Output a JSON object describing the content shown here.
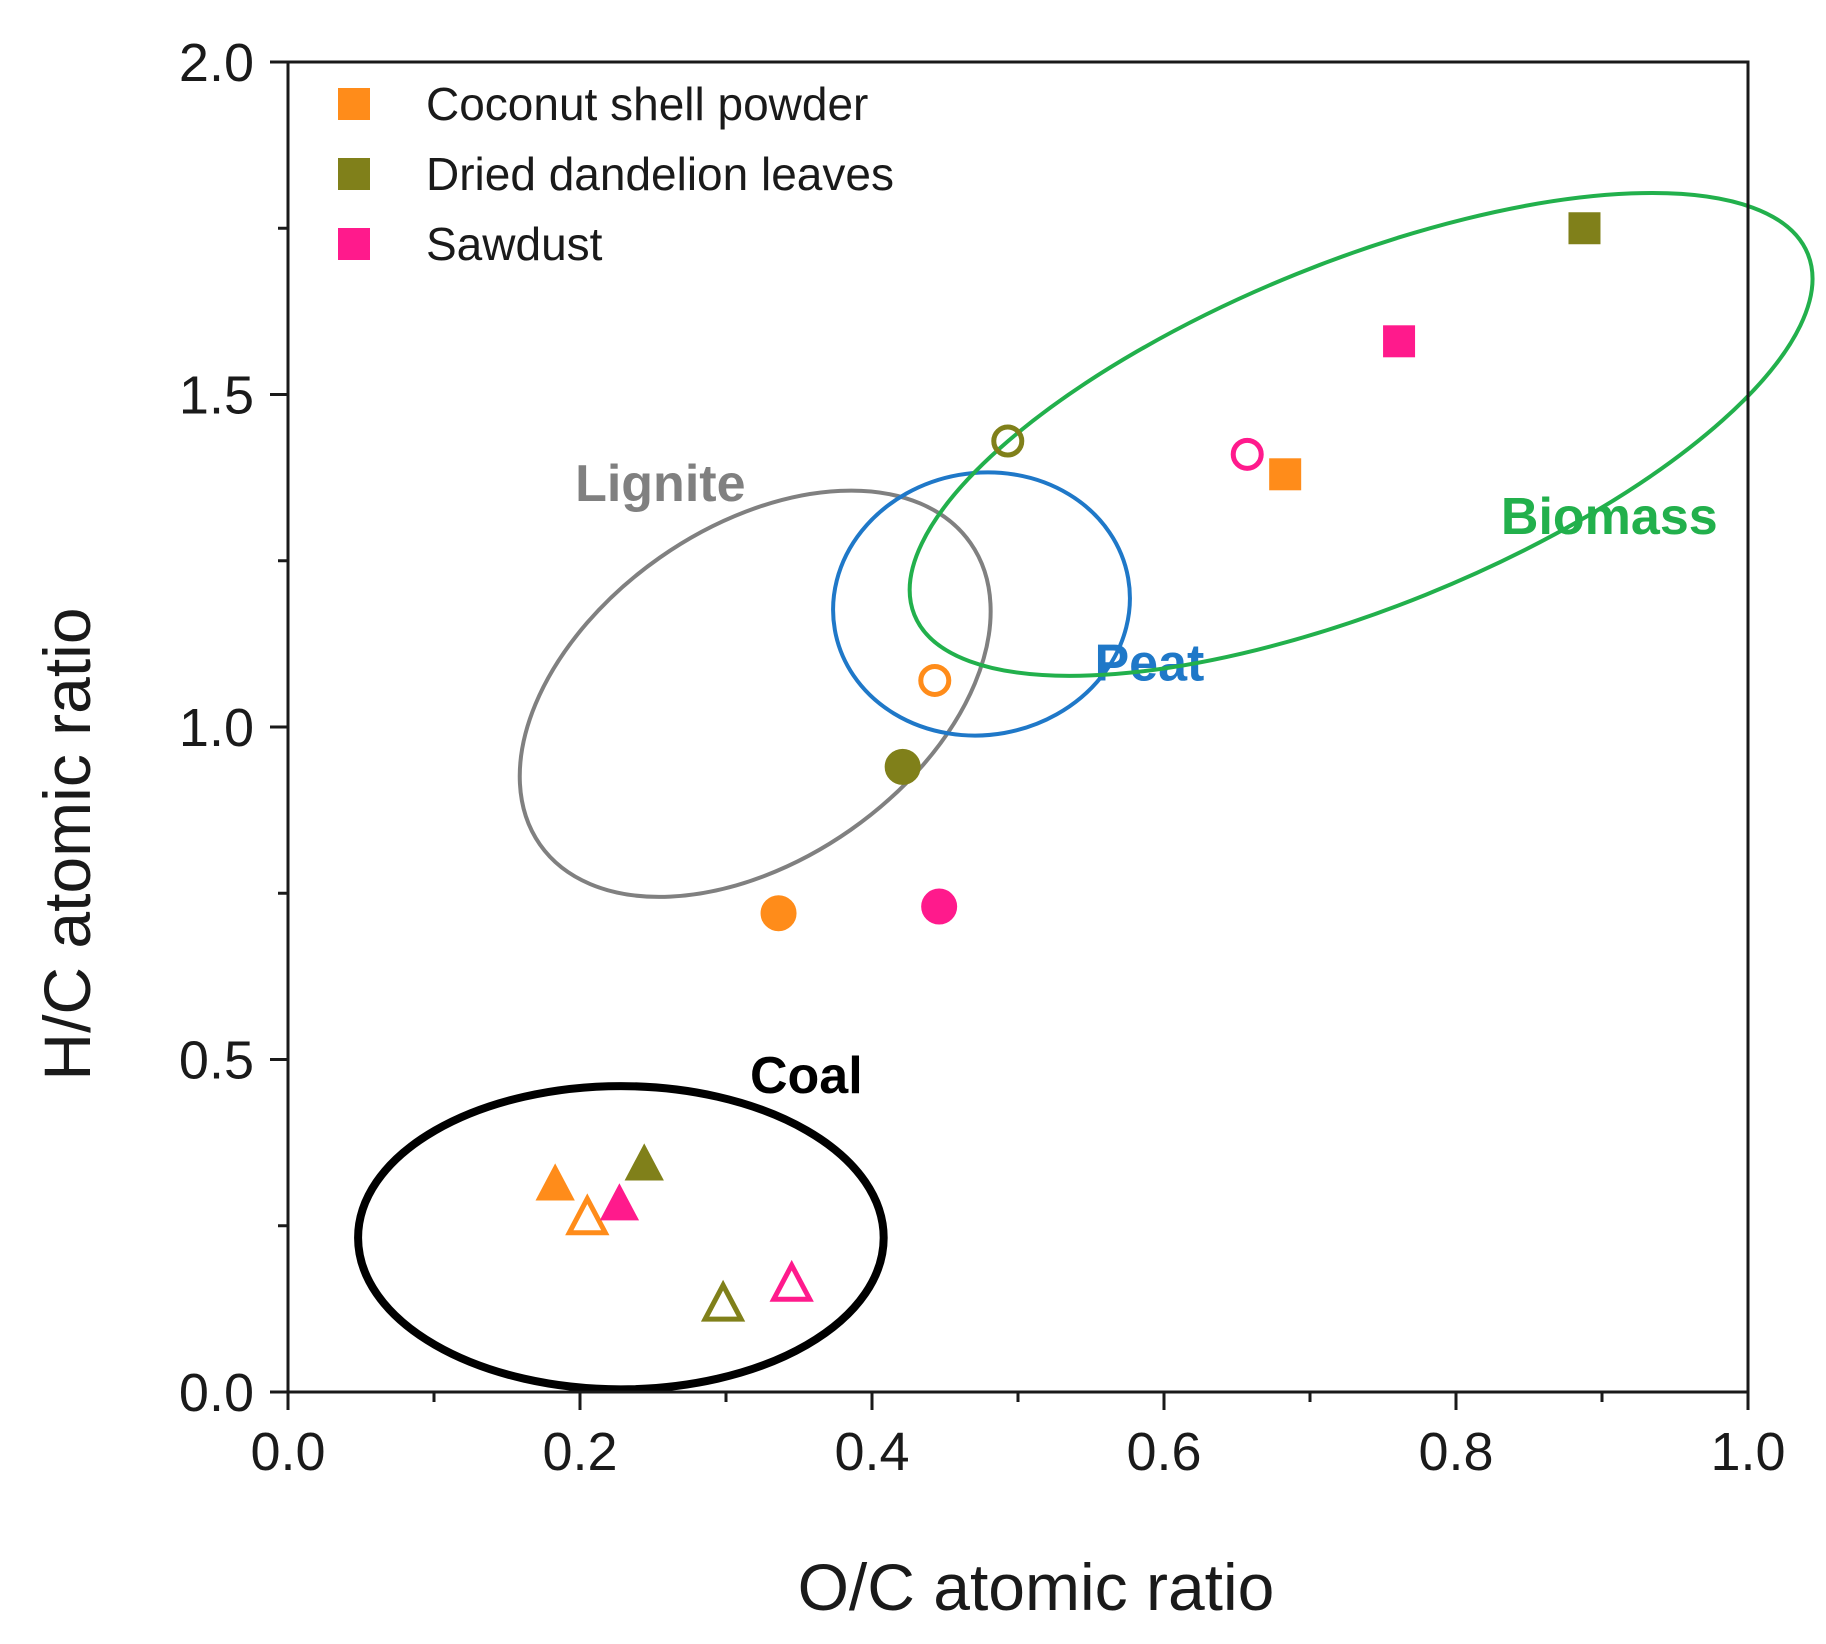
{
  "chart_data": {
    "type": "scatter",
    "title": "",
    "xlabel": "O/C atomic ratio",
    "ylabel": "H/C atomic ratio",
    "xlim": [
      0.0,
      1.0
    ],
    "ylim": [
      0.0,
      2.0
    ],
    "x_ticks": [
      "0.0",
      "0.2",
      "0.4",
      "0.6",
      "0.8",
      "1.0"
    ],
    "y_ticks": [
      "0.0",
      "0.5",
      "1.0",
      "1.5",
      "2.0"
    ],
    "x_tick_values": [
      0.0,
      0.2,
      0.4,
      0.6,
      0.8,
      1.0
    ],
    "y_tick_values": [
      0.0,
      0.5,
      1.0,
      1.5,
      2.0
    ],
    "grid": false,
    "legend_position": "top-left",
    "legend": [
      {
        "label": "Coconut shell powder",
        "color": "#ff8c1a",
        "marker": "square"
      },
      {
        "label": "Dried dandelion leaves",
        "color": "#80801a",
        "marker": "square"
      },
      {
        "label": "Sawdust",
        "color": "#ff1a8c",
        "marker": "square"
      }
    ],
    "series": [
      {
        "name": "Coconut shell powder",
        "color": "#ff8c1a",
        "points": [
          {
            "x": 0.683,
            "y": 1.38,
            "marker": "square",
            "filled": true
          },
          {
            "x": 0.443,
            "y": 1.07,
            "marker": "circle",
            "filled": false
          },
          {
            "x": 0.336,
            "y": 0.72,
            "marker": "circle",
            "filled": true
          },
          {
            "x": 0.183,
            "y": 0.31,
            "marker": "triangle",
            "filled": true
          },
          {
            "x": 0.205,
            "y": 0.26,
            "marker": "triangle",
            "filled": false
          }
        ]
      },
      {
        "name": "Dried dandelion leaves",
        "color": "#80801a",
        "points": [
          {
            "x": 0.888,
            "y": 1.75,
            "marker": "square",
            "filled": true
          },
          {
            "x": 0.493,
            "y": 1.43,
            "marker": "circle",
            "filled": false
          },
          {
            "x": 0.421,
            "y": 0.94,
            "marker": "circle",
            "filled": true
          },
          {
            "x": 0.244,
            "y": 0.34,
            "marker": "triangle",
            "filled": true
          },
          {
            "x": 0.298,
            "y": 0.13,
            "marker": "triangle",
            "filled": false
          }
        ]
      },
      {
        "name": "Sawdust",
        "color": "#ff1a8c",
        "points": [
          {
            "x": 0.761,
            "y": 1.58,
            "marker": "square",
            "filled": true
          },
          {
            "x": 0.657,
            "y": 1.41,
            "marker": "circle",
            "filled": false
          },
          {
            "x": 0.446,
            "y": 0.73,
            "marker": "circle",
            "filled": true
          },
          {
            "x": 0.227,
            "y": 0.28,
            "marker": "triangle",
            "filled": true
          },
          {
            "x": 0.345,
            "y": 0.16,
            "marker": "triangle",
            "filled": false
          }
        ]
      }
    ],
    "regions": [
      {
        "name": "Coal",
        "label": "Coal",
        "color": "#000000",
        "cx": 0.228,
        "cy": 0.232,
        "rx": 0.18,
        "ry": 0.228,
        "angle": 0
      },
      {
        "name": "Lignite",
        "label": "Lignite",
        "color": "#808080",
        "cx": 0.32,
        "cy": 1.05,
        "rx": 0.18,
        "ry": 0.25,
        "angle": -35
      },
      {
        "name": "Peat",
        "label": "Peat",
        "color": "#1f78c8",
        "cx": 0.475,
        "cy": 1.185,
        "rx": 0.102,
        "ry": 0.197,
        "angle": -10
      },
      {
        "name": "Biomass",
        "label": "Biomass",
        "color": "#22b04c",
        "cx": 0.735,
        "cy": 1.44,
        "rx": 0.33,
        "ry": 0.26,
        "angle": -22
      }
    ]
  }
}
